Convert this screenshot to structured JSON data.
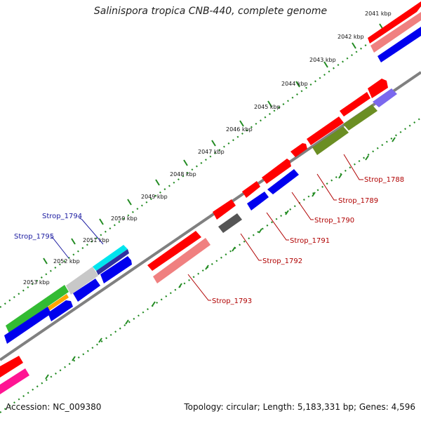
{
  "title": "Salinispora tropica CNB-440, complete genome",
  "footer": {
    "accession": "Accession: NC_009380",
    "summary": "Topology: circular; Length: 5,183,331 bp; Genes: 4,596"
  },
  "ticks": [
    "2041 kbp",
    "2042 kbp",
    "2043 kbp",
    "2044 kbp",
    "2045 kbp",
    "2046 kbp",
    "2047 kbp",
    "2048 kbp",
    "2049 kbp",
    "2050 kbp",
    "2051 kbp",
    "2052 kbp",
    "2053 kbp"
  ],
  "gene_labels": {
    "red": [
      "Strop_1788",
      "Strop_1789",
      "Strop_1790",
      "Strop_1791",
      "Strop_1792",
      "Strop_1793"
    ],
    "blue": [
      "Strop_1794",
      "Strop_1795"
    ]
  },
  "colors": {
    "cds_red": "#ff0000",
    "cds_blue": "#0000ee",
    "cds_pink": "#f08080",
    "cds_green": "#33bb33",
    "cds_olive": "#6b8e23",
    "cds_gray": "#555555",
    "cds_cyan": "#00e5ee",
    "cds_purple": "#7b68ee",
    "cds_magenta": "#ff1493",
    "cds_orange": "#ffa500",
    "backbone": "#808080",
    "tick_green": "#228b22"
  }
}
